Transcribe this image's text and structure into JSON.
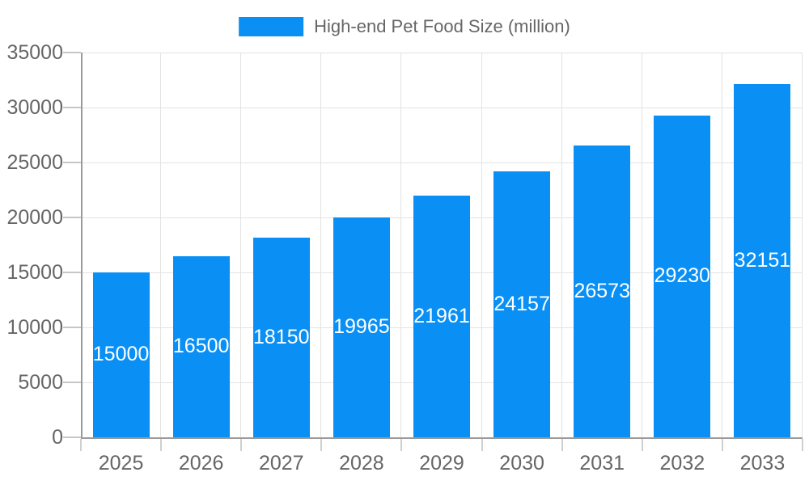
{
  "legend": {
    "label": "High-end Pet Food Size (million)"
  },
  "chart_data": {
    "type": "bar",
    "title": "High-end Pet Food Size (million)",
    "categories": [
      "2025",
      "2026",
      "2027",
      "2028",
      "2029",
      "2030",
      "2031",
      "2032",
      "2033"
    ],
    "values": [
      15000,
      16500,
      18150,
      19965,
      21961,
      24157,
      26573,
      29230,
      32151
    ],
    "xlabel": "",
    "ylabel": "",
    "ylim": [
      0,
      35000
    ],
    "y_ticks": [
      0,
      5000,
      10000,
      15000,
      20000,
      25000,
      30000,
      35000
    ],
    "grid": true,
    "legend_position": "top-center",
    "value_labels": "inside-center"
  },
  "colors": {
    "bar": "#0a90f5",
    "axis": "#9b9b9b",
    "gridline": "#e3e3e3",
    "y_tick": "#c6c6c6",
    "x_tick": "#cfcfcf",
    "label": "#666666",
    "value_label": "#ffffff",
    "background": "#ffffff"
  }
}
